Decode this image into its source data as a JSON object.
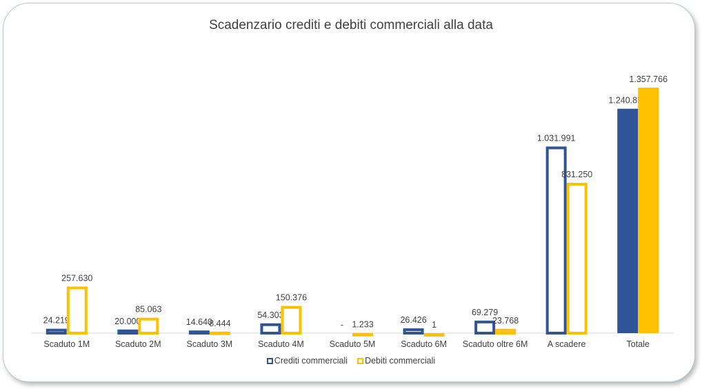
{
  "chart_data": {
    "type": "bar",
    "title": "Scadenzario crediti e debiti commerciali alla data",
    "categories": [
      "Scaduto 1M",
      "Scaduto 2M",
      "Scaduto 3M",
      "Scaduto 4M",
      "Scaduto 5M",
      "Scaduto 6M",
      "Scaduto oltre 6M",
      "A scadere",
      "Totale"
    ],
    "series": [
      {
        "name": "Crediti commerciali",
        "color": "#2f5597",
        "values": [
          24219,
          20000,
          14640,
          54303,
          0,
          26426,
          69279,
          1031991,
          1240859
        ],
        "labels": [
          "24.219",
          "20.000",
          "14.640",
          "54.303",
          "-",
          "26.426",
          "69.279",
          "1.031.991",
          "1.240.859"
        ]
      },
      {
        "name": "Debiti commerciali",
        "color": "#ffc000",
        "values": [
          257630,
          85063,
          8444,
          150376,
          1233,
          1,
          23768,
          831250,
          1357766
        ],
        "labels": [
          "257.630",
          "85.063",
          "8.444",
          "150.376",
          "1.233",
          "1",
          "23.768",
          "831.250",
          "1.357.766"
        ]
      }
    ],
    "filled_categories": [
      "Totale"
    ],
    "legend_position": "bottom",
    "grid": false,
    "ylim": [
      0,
      1357766
    ]
  }
}
